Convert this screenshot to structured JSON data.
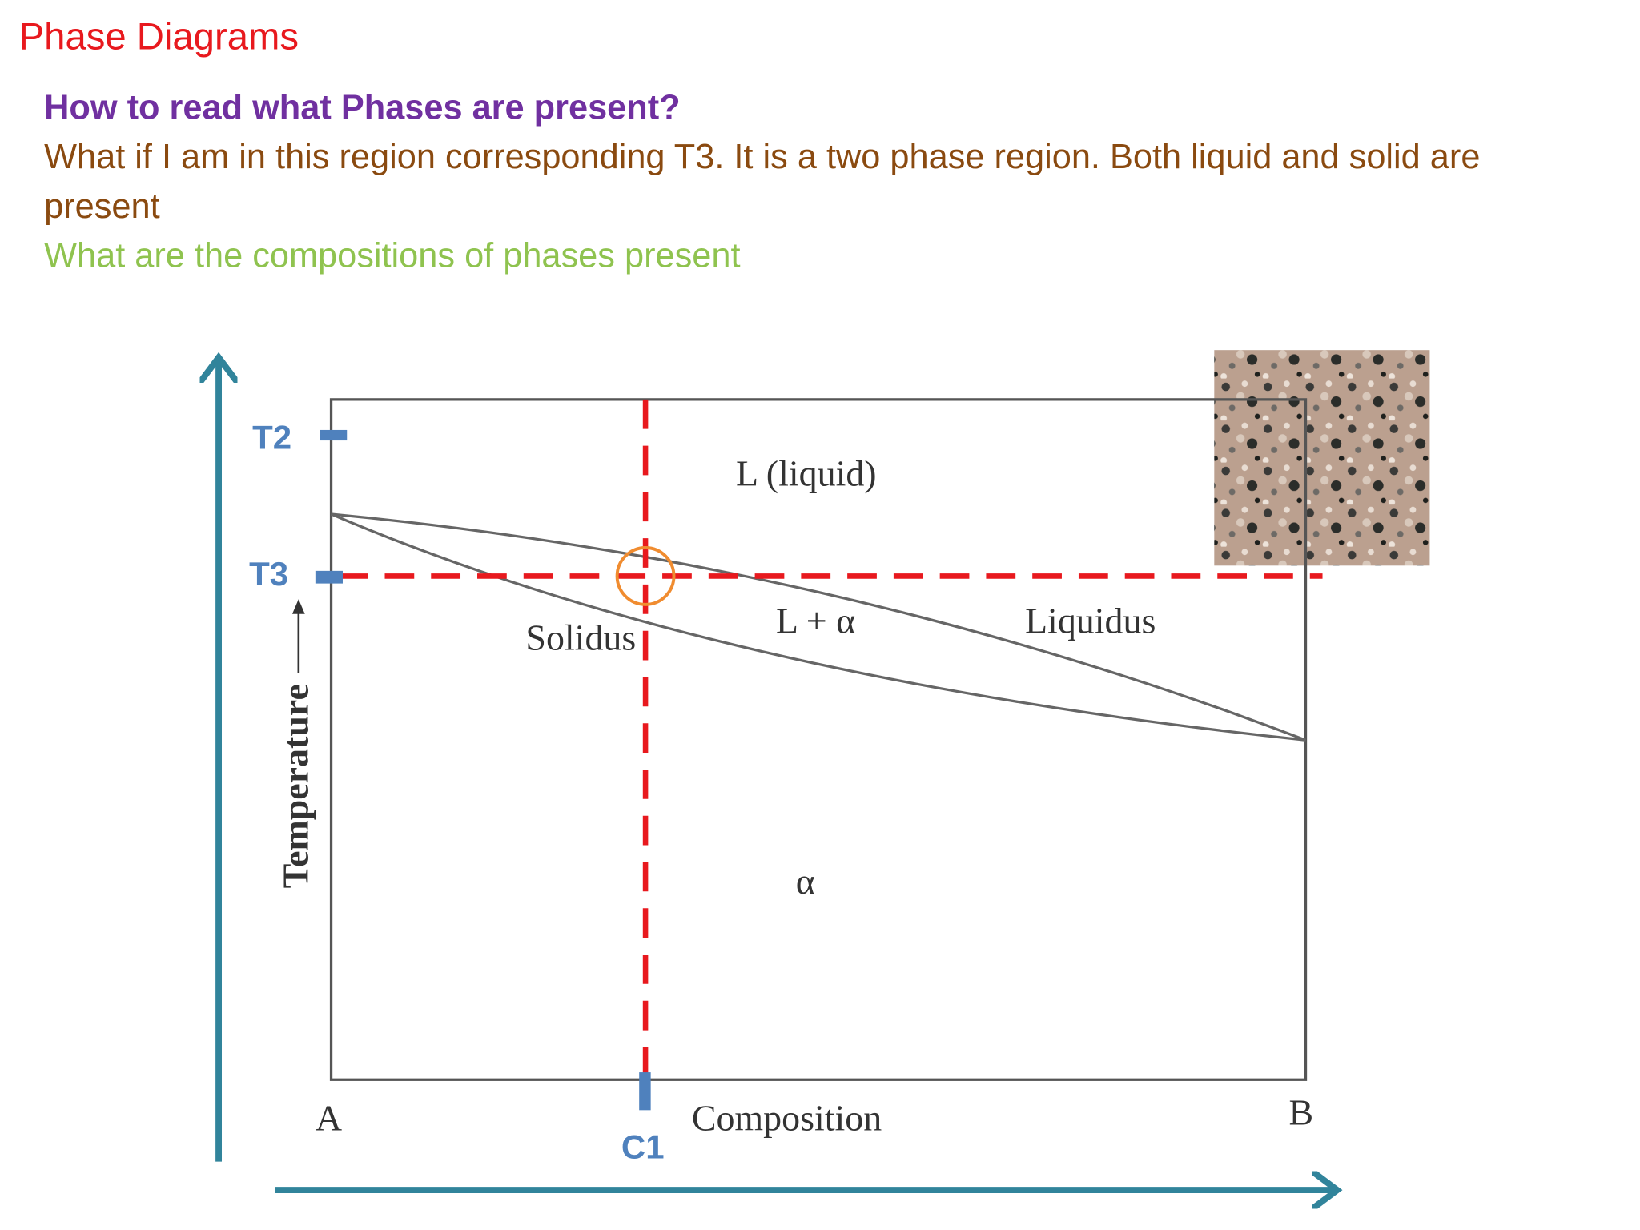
{
  "title": "Phase Diagrams",
  "heading": "How to read what Phases are present?",
  "body": "What if I am in this region corresponding T3. It is a two phase region. Both liquid and solid are present",
  "question": "What are the compositions of phases present",
  "diagram": {
    "markers": {
      "t2": "T2",
      "t3": "T3",
      "c1": "C1"
    },
    "regions": {
      "liquid": "L (liquid)",
      "two_phase": "L + α",
      "solid": "α"
    },
    "curves": {
      "solidus": "Solidus",
      "liquidus": "Liquidus"
    },
    "axes": {
      "x_label": "Composition",
      "y_label": "Temperature",
      "left_end": "A",
      "right_end": "B"
    }
  }
}
